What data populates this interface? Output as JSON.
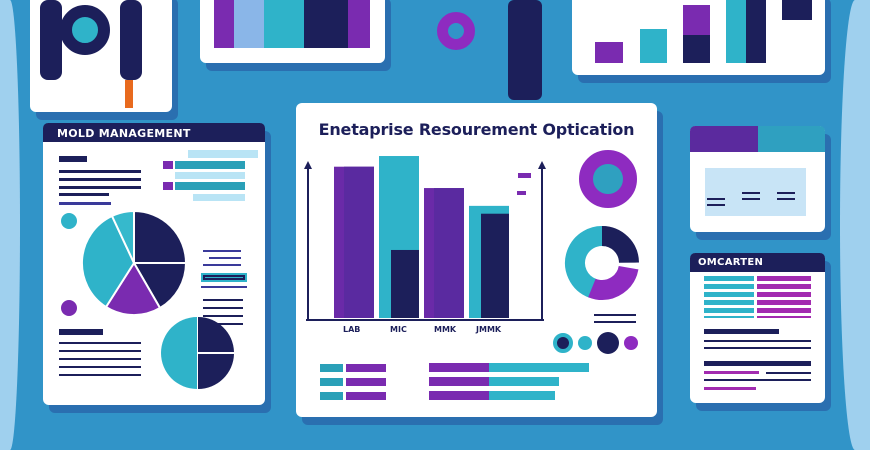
{
  "main_card": {
    "title": "Enetaprise Resourement Optication"
  },
  "left_card": {
    "title": "MOLD MANAGEMENT"
  },
  "right_card": {
    "title": "OMCARTEN"
  },
  "colors": {
    "background": "#3194c8",
    "navy": "#1c1f5a",
    "purple": "#7a2bb0",
    "teal": "#2fb3c9",
    "white": "#ffffff"
  },
  "chart_data": {
    "type": "bar",
    "categories": [
      "LAB",
      "MIC",
      "MMK",
      "JMMK"
    ],
    "values": [
      85,
      91,
      73,
      63
    ],
    "colors": [
      "#6a2aa8",
      "#2fb3c9",
      "#6a2aa8",
      "#1c1f5a"
    ],
    "xlabel": "",
    "ylabel": "",
    "grid": false
  }
}
